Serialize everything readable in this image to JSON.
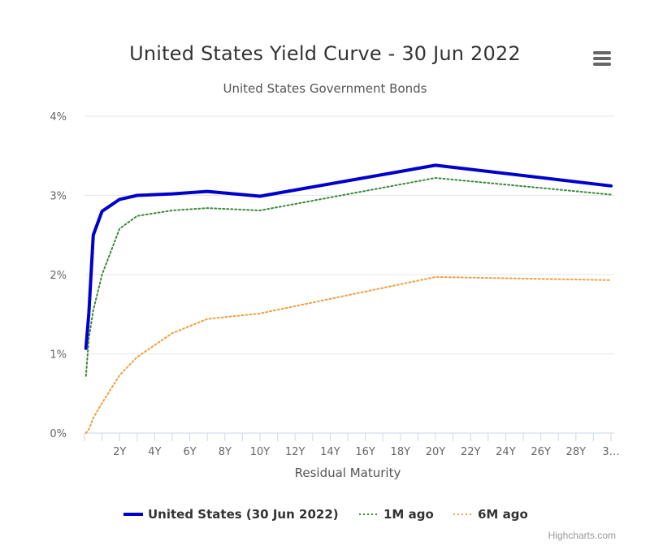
{
  "header": {
    "title": "United States Yield Curve - 30 Jun 2022",
    "subtitle": "United States Government Bonds",
    "menu_icon": "hamburger-menu-icon"
  },
  "credits": "Highcharts.com",
  "chart_data": {
    "type": "line",
    "title": "United States Yield Curve - 30 Jun 2022",
    "subtitle": "United States Government Bonds",
    "xlabel": "Residual Maturity",
    "ylabel": "",
    "xlim": [
      0,
      30
    ],
    "ylim": [
      0,
      4
    ],
    "x_ticks": [
      2,
      4,
      6,
      8,
      10,
      12,
      14,
      16,
      18,
      20,
      22,
      24,
      26,
      28,
      30
    ],
    "x_tick_labels": [
      "2Y",
      "4Y",
      "6Y",
      "8Y",
      "10Y",
      "12Y",
      "14Y",
      "16Y",
      "18Y",
      "20Y",
      "22Y",
      "24Y",
      "26Y",
      "28Y",
      "3…"
    ],
    "y_ticks": [
      0,
      1,
      2,
      3,
      4
    ],
    "y_tick_labels": [
      "0%",
      "1%",
      "2%",
      "3%",
      "4%"
    ],
    "grid": true,
    "legend_position": "bottom-center",
    "series": [
      {
        "name": "United States (30 Jun 2022)",
        "color": "#0000cc",
        "style": "solid",
        "x": [
          0.083,
          0.25,
          0.5,
          1,
          2,
          3,
          5,
          7,
          10,
          20,
          30
        ],
        "y": [
          1.07,
          1.52,
          2.5,
          2.8,
          2.95,
          3.0,
          3.02,
          3.05,
          2.99,
          3.38,
          3.12
        ]
      },
      {
        "name": "1M ago",
        "color": "#3a8a3a",
        "style": "dotted",
        "x": [
          0.083,
          0.25,
          0.5,
          1,
          2,
          3,
          5,
          7,
          10,
          20,
          30
        ],
        "y": [
          0.72,
          1.2,
          1.55,
          2.0,
          2.58,
          2.74,
          2.81,
          2.84,
          2.81,
          3.22,
          3.01
        ]
      },
      {
        "name": "6M ago",
        "color": "#f0a040",
        "style": "dotted",
        "x": [
          0.083,
          0.25,
          0.5,
          1,
          2,
          3,
          5,
          7,
          10,
          20,
          30
        ],
        "y": [
          0.0,
          0.05,
          0.19,
          0.38,
          0.73,
          0.96,
          1.26,
          1.44,
          1.51,
          1.97,
          1.93
        ]
      }
    ]
  }
}
